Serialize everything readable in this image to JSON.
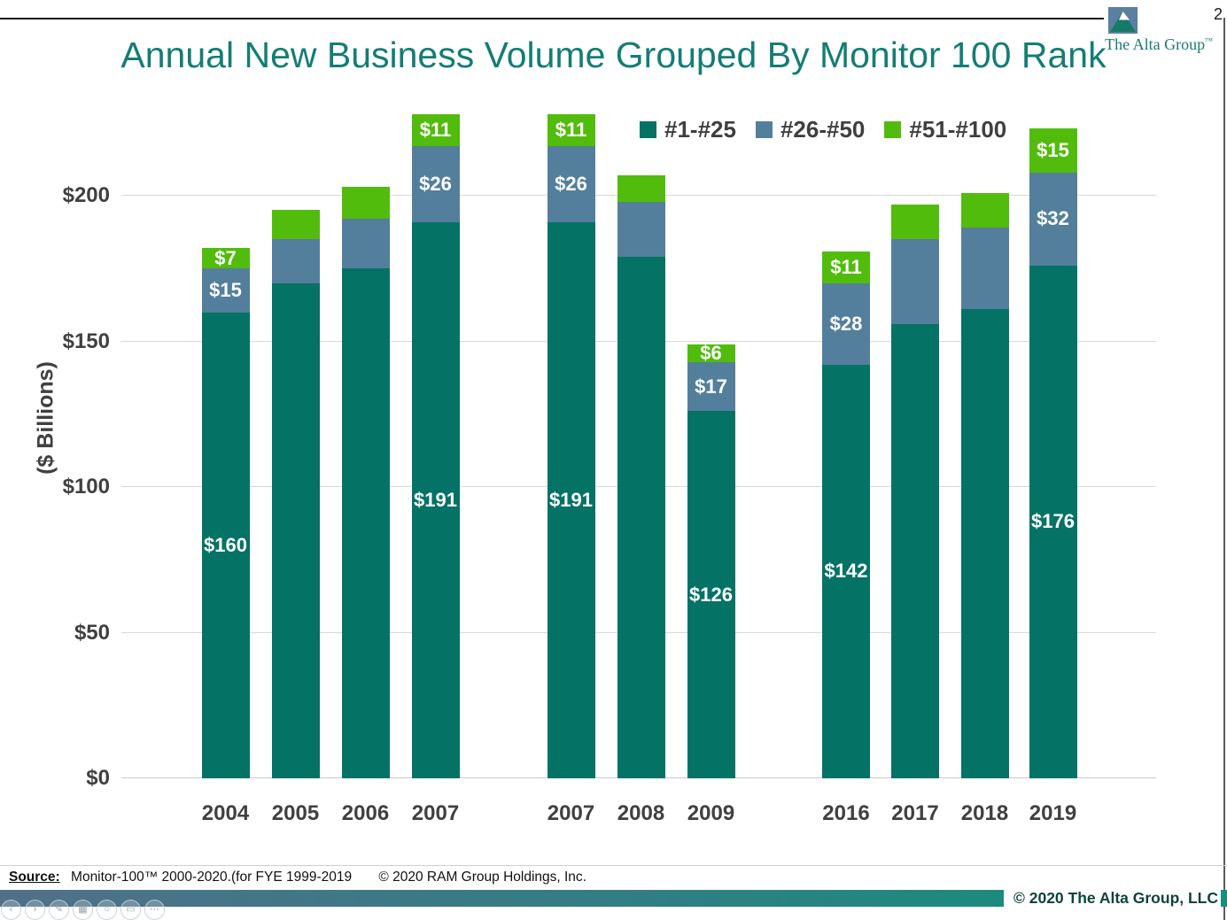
{
  "slide": {
    "page_number": "2"
  },
  "logo": {
    "name": "The Alta Group",
    "trademark": "™"
  },
  "chart_data": {
    "type": "bar",
    "stacked": true,
    "title": "Annual New Business Volume Grouped By Monitor 100 Rank",
    "ylabel": "($ Billions)",
    "ylim": [
      0,
      231
    ],
    "grid": "horizontal",
    "legend_position": "top-inside",
    "yticks": [
      {
        "value": 0,
        "label": "$0"
      },
      {
        "value": 50,
        "label": "$50"
      },
      {
        "value": 100,
        "label": "$100"
      },
      {
        "value": 150,
        "label": "$150"
      },
      {
        "value": 200,
        "label": "$200"
      }
    ],
    "series": [
      {
        "name": "#1-#25",
        "color": "#057266"
      },
      {
        "name": "#26-#50",
        "color": "#537F9C"
      },
      {
        "name": "#51-#100",
        "color": "#52BC0D"
      }
    ],
    "groups": [
      {
        "bars": [
          {
            "year": "2004",
            "segments": [
              {
                "series": "#1-#25",
                "value": 160,
                "label": "$160"
              },
              {
                "series": "#26-#50",
                "value": 15,
                "label": "$15"
              },
              {
                "series": "#51-#100",
                "value": 7,
                "label": "$7"
              }
            ]
          },
          {
            "year": "2005",
            "segments": [
              {
                "series": "#1-#25",
                "value": 170,
                "label": ""
              },
              {
                "series": "#26-#50",
                "value": 15,
                "label": ""
              },
              {
                "series": "#51-#100",
                "value": 10,
                "label": ""
              }
            ]
          },
          {
            "year": "2006",
            "segments": [
              {
                "series": "#1-#25",
                "value": 175,
                "label": ""
              },
              {
                "series": "#26-#50",
                "value": 17,
                "label": ""
              },
              {
                "series": "#51-#100",
                "value": 11,
                "label": ""
              }
            ]
          },
          {
            "year": "2007",
            "segments": [
              {
                "series": "#1-#25",
                "value": 191,
                "label": "$191"
              },
              {
                "series": "#26-#50",
                "value": 26,
                "label": "$26"
              },
              {
                "series": "#51-#100",
                "value": 11,
                "label": "$11"
              }
            ]
          }
        ]
      },
      {
        "bars": [
          {
            "year": "2007",
            "segments": [
              {
                "series": "#1-#25",
                "value": 191,
                "label": "$191"
              },
              {
                "series": "#26-#50",
                "value": 26,
                "label": "$26"
              },
              {
                "series": "#51-#100",
                "value": 11,
                "label": "$11"
              }
            ]
          },
          {
            "year": "2008",
            "segments": [
              {
                "series": "#1-#25",
                "value": 179,
                "label": ""
              },
              {
                "series": "#26-#50",
                "value": 19,
                "label": ""
              },
              {
                "series": "#51-#100",
                "value": 9,
                "label": ""
              }
            ]
          },
          {
            "year": "2009",
            "segments": [
              {
                "series": "#1-#25",
                "value": 126,
                "label": "$126"
              },
              {
                "series": "#26-#50",
                "value": 17,
                "label": "$17"
              },
              {
                "series": "#51-#100",
                "value": 6,
                "label": "$6"
              }
            ]
          }
        ]
      },
      {
        "bars": [
          {
            "year": "2016",
            "segments": [
              {
                "series": "#1-#25",
                "value": 142,
                "label": "$142"
              },
              {
                "series": "#26-#50",
                "value": 28,
                "label": "$28"
              },
              {
                "series": "#51-#100",
                "value": 11,
                "label": "$11"
              }
            ]
          },
          {
            "year": "2017",
            "segments": [
              {
                "series": "#1-#25",
                "value": 156,
                "label": ""
              },
              {
                "series": "#26-#50",
                "value": 29,
                "label": ""
              },
              {
                "series": "#51-#100",
                "value": 12,
                "label": ""
              }
            ]
          },
          {
            "year": "2018",
            "segments": [
              {
                "series": "#1-#25",
                "value": 161,
                "label": ""
              },
              {
                "series": "#26-#50",
                "value": 28,
                "label": ""
              },
              {
                "series": "#51-#100",
                "value": 12,
                "label": ""
              }
            ]
          },
          {
            "year": "2019",
            "segments": [
              {
                "series": "#1-#25",
                "value": 176,
                "label": "$176"
              },
              {
                "series": "#26-#50",
                "value": 32,
                "label": "$32"
              },
              {
                "series": "#51-#100",
                "value": 15,
                "label": "$15"
              }
            ]
          }
        ]
      }
    ]
  },
  "footer": {
    "source_label": "Source:",
    "source_text": "Monitor-100™ 2000-2020.(for FYE 1999-2019",
    "source_copyright": "© 2020 RAM Group Holdings, Inc.",
    "slide_copyright": "© 2020 The Alta Group, LLC"
  },
  "controls": [
    {
      "name": "previous-slide",
      "glyph": "‹"
    },
    {
      "name": "next-slide",
      "glyph": "›"
    },
    {
      "name": "pen",
      "glyph": "✎"
    },
    {
      "name": "see-all-slides",
      "glyph": "▦"
    },
    {
      "name": "zoom-slide",
      "glyph": "○"
    },
    {
      "name": "captions",
      "glyph": "▭"
    },
    {
      "name": "more-options",
      "glyph": "⋯"
    }
  ]
}
